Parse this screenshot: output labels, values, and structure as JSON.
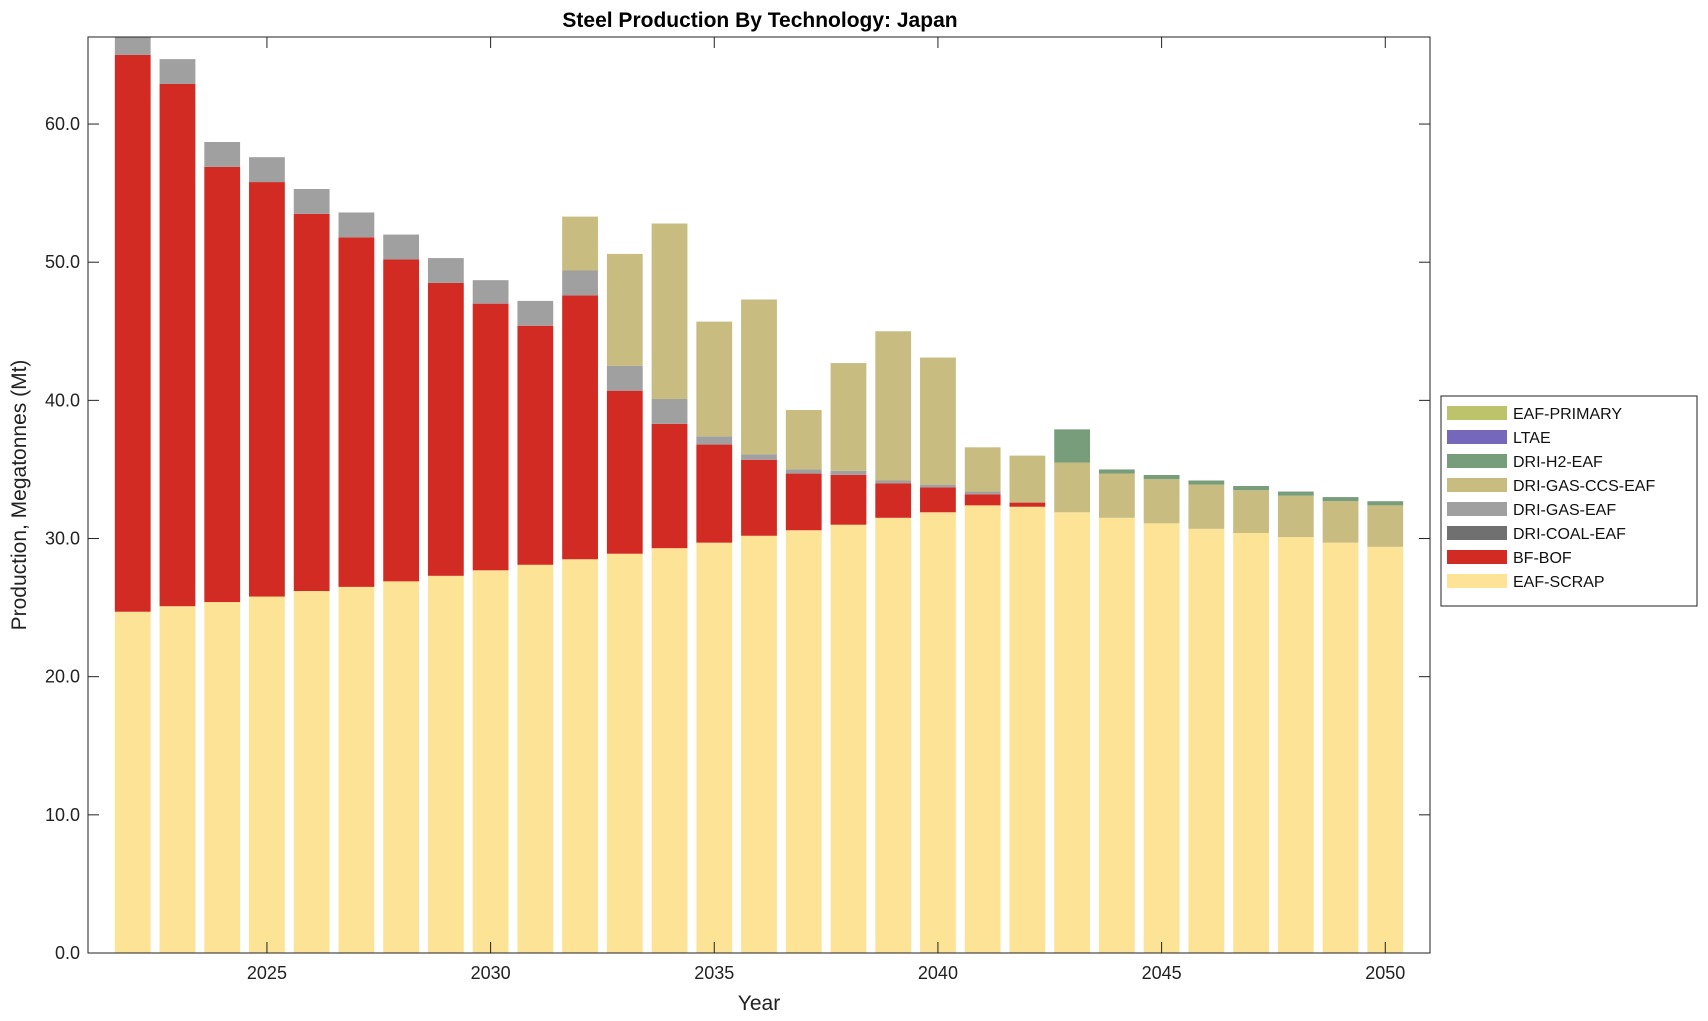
{
  "chart_data": {
    "type": "bar",
    "stacked": true,
    "title": "Steel Production By Technology: Japan",
    "xlabel": "Year",
    "ylabel": "Production, Megatonnes (Mt)",
    "x": [
      2022,
      2023,
      2024,
      2025,
      2026,
      2027,
      2028,
      2029,
      2030,
      2031,
      2032,
      2033,
      2034,
      2035,
      2036,
      2037,
      2038,
      2039,
      2040,
      2041,
      2042,
      2043,
      2044,
      2045,
      2046,
      2047,
      2048,
      2049,
      2050
    ],
    "xlim": [
      2021.0,
      2051.0
    ],
    "ylim": [
      0,
      66.3
    ],
    "xticks": [
      "2025",
      "2030",
      "2035",
      "2040",
      "2045",
      "2050"
    ],
    "yticks": [
      "0.0",
      "10.0",
      "20.0",
      "30.0",
      "40.0",
      "50.0",
      "60.0"
    ],
    "legend_position": "outside-right",
    "series": [
      {
        "name": "EAF-SCRAP",
        "color": "#fde396",
        "values": [
          24.7,
          25.1,
          25.4,
          25.8,
          26.2,
          26.5,
          26.9,
          27.3,
          27.7,
          28.1,
          28.5,
          28.9,
          29.3,
          29.7,
          30.2,
          30.6,
          31.0,
          31.5,
          31.9,
          32.4,
          32.3,
          31.9,
          31.5,
          31.1,
          30.7,
          30.4,
          30.1,
          29.7,
          29.4
        ]
      },
      {
        "name": "BF-BOF",
        "color": "#d12b23",
        "values": [
          40.3,
          37.8,
          31.5,
          30.0,
          27.3,
          25.3,
          23.3,
          21.2,
          19.3,
          17.3,
          19.1,
          11.8,
          9.0,
          7.1,
          5.5,
          4.1,
          3.6,
          2.5,
          1.8,
          0.8,
          0.3,
          0,
          0,
          0,
          0,
          0,
          0,
          0,
          0
        ]
      },
      {
        "name": "DRI-COAL-EAF",
        "color": "#707070",
        "values": [
          0,
          0,
          0,
          0,
          0,
          0,
          0,
          0,
          0,
          0,
          0,
          0,
          0,
          0,
          0,
          0,
          0,
          0,
          0,
          0,
          0,
          0,
          0,
          0,
          0,
          0,
          0,
          0,
          0
        ]
      },
      {
        "name": "DRI-GAS-EAF",
        "color": "#a0a0a0",
        "values": [
          1.6,
          1.8,
          1.8,
          1.8,
          1.8,
          1.8,
          1.8,
          1.8,
          1.7,
          1.8,
          1.8,
          1.8,
          1.8,
          0.6,
          0.4,
          0.3,
          0.3,
          0.2,
          0.2,
          0.2,
          0,
          0,
          0,
          0,
          0,
          0,
          0,
          0,
          0
        ]
      },
      {
        "name": "DRI-GAS-CCS-EAF",
        "color": "#c8bc80",
        "values": [
          0,
          0,
          0,
          0,
          0,
          0,
          0,
          0,
          0,
          0,
          3.9,
          8.1,
          12.7,
          8.3,
          11.2,
          4.3,
          7.8,
          10.8,
          9.2,
          3.2,
          3.4,
          3.6,
          3.2,
          3.2,
          3.2,
          3.1,
          3.0,
          3.0,
          3.0
        ]
      },
      {
        "name": "DRI-H2-EAF",
        "color": "#789d7a",
        "values": [
          0,
          0,
          0,
          0,
          0,
          0,
          0,
          0,
          0,
          0,
          0,
          0,
          0,
          0,
          0,
          0,
          0,
          0,
          0,
          0,
          0,
          2.4,
          0.3,
          0.3,
          0.3,
          0.3,
          0.3,
          0.3,
          0.3
        ]
      },
      {
        "name": "LTAE",
        "color": "#7568bb",
        "values": [
          0,
          0,
          0,
          0,
          0,
          0,
          0,
          0,
          0,
          0,
          0,
          0,
          0,
          0,
          0,
          0,
          0,
          0,
          0,
          0,
          0,
          0,
          0,
          0,
          0,
          0,
          0,
          0,
          0
        ]
      },
      {
        "name": "EAF-PRIMARY",
        "color": "#bcc36b",
        "values": [
          0,
          0,
          0,
          0,
          0,
          0,
          0,
          0,
          0,
          0,
          0,
          0,
          0,
          0,
          0,
          0,
          0,
          0,
          0,
          0,
          0,
          0,
          0,
          0,
          0,
          0,
          0,
          0,
          0
        ]
      }
    ]
  }
}
